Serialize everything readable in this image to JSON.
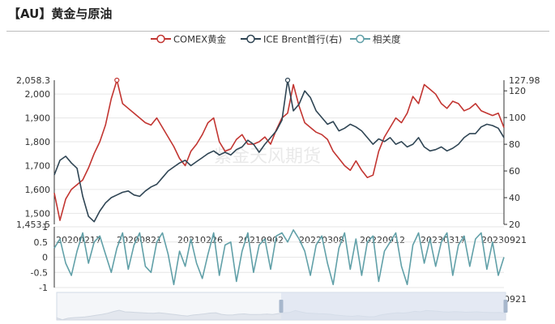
{
  "page": {
    "title": "【AU】黄金与原油"
  },
  "chart_data": [
    {
      "type": "line",
      "x_ticks": [
        "20200217",
        "20200821",
        "20210226",
        "20210902",
        "20220308",
        "20220912",
        "20230317",
        "20230921"
      ],
      "series": [
        {
          "name": "COMEX黄金",
          "axis": "left",
          "color": "#c23531",
          "values": [
            1585,
            1470,
            1560,
            1600,
            1620,
            1640,
            1690,
            1750,
            1800,
            1870,
            1980,
            2058.3,
            1960,
            1940,
            1920,
            1900,
            1880,
            1870,
            1900,
            1860,
            1820,
            1780,
            1730,
            1700,
            1760,
            1790,
            1830,
            1880,
            1900,
            1800,
            1760,
            1770,
            1810,
            1830,
            1790,
            1790,
            1800,
            1820,
            1790,
            1850,
            1900,
            1920,
            2040,
            1950,
            1880,
            1860,
            1840,
            1830,
            1810,
            1760,
            1730,
            1700,
            1680,
            1720,
            1680,
            1650,
            1660,
            1760,
            1820,
            1860,
            1900,
            1880,
            1920,
            1990,
            1960,
            2040,
            2020,
            2000,
            1960,
            1940,
            1970,
            1960,
            1930,
            1940,
            1960,
            1930,
            1920,
            1910,
            1920,
            1860
          ],
          "label": {
            "text": "2,058.3"
          }
        },
        {
          "name": "ICE Brent首行(右)",
          "axis": "right",
          "color": "#2f4554",
          "values": [
            57,
            68,
            71,
            66,
            62,
            41,
            26,
            22,
            30,
            36,
            40,
            42,
            44,
            45,
            42,
            41,
            45,
            48,
            50,
            55,
            60,
            63,
            66,
            68,
            64,
            67,
            70,
            73,
            75,
            72,
            74,
            72,
            76,
            78,
            83,
            80,
            74,
            80,
            85,
            90,
            98,
            127.98,
            105,
            110,
            120,
            115,
            105,
            100,
            95,
            97,
            90,
            92,
            95,
            93,
            90,
            85,
            80,
            84,
            82,
            85,
            80,
            82,
            78,
            80,
            85,
            78,
            75,
            76,
            78,
            75,
            77,
            80,
            85,
            88,
            88,
            93,
            95,
            94,
            92,
            85
          ],
          "label": {
            "text": "127.98"
          }
        }
      ],
      "ylim_left": [
        1453.5,
        2058.3
      ],
      "ylim_right": [
        20,
        127.98
      ],
      "y_left_ticks": [
        1500,
        1600,
        1700,
        1800,
        1900,
        2000
      ],
      "y_left_tick_labels": [
        "1,500",
        "1,600",
        "1,700",
        "1,800",
        "1,900",
        "2,000"
      ],
      "y_left_min_label": "1,453.5",
      "y_left_max_label": "2,058.3",
      "y_right_ticks": [
        20,
        40,
        60,
        80,
        100,
        120
      ],
      "y_right_max_label": "127.98"
    },
    {
      "type": "line",
      "x_ticks": [
        "20200217",
        "20200821",
        "20210226",
        "20210902",
        "20220308",
        "20220912",
        "20230317",
        "20230921"
      ],
      "series": [
        {
          "name": "相关度",
          "color": "#61a0a8",
          "values": [
            0.3,
            0.6,
            -0.2,
            -0.6,
            0.2,
            0.8,
            -0.2,
            0.5,
            0.7,
            0.1,
            -0.5,
            0.3,
            0.8,
            -0.4,
            0.4,
            0.8,
            -0.3,
            -0.5,
            0.5,
            0.8,
            0.1,
            -0.9,
            0.2,
            -0.3,
            0.6,
            -0.2,
            -0.7,
            0.1,
            0.8,
            -0.6,
            0.4,
            0.5,
            -0.8,
            0.2,
            0.8,
            -0.5,
            0.4,
            0.6,
            -0.4,
            0.7,
            0.8,
            0.5,
            0.9,
            0.6,
            0.2,
            -0.6,
            0.4,
            0.7,
            -0.2,
            -0.9,
            0.3,
            0.8,
            -0.4,
            0.6,
            -0.6,
            0.5,
            0.7,
            -0.8,
            0.2,
            0.5,
            0.8,
            -0.3,
            -0.9,
            0.4,
            0.8,
            -0.2,
            0.6,
            -0.3,
            0.5,
            0.8,
            -0.6,
            0.4,
            0.7,
            -0.3,
            0.6,
            0.8,
            -0.4,
            0.5,
            -0.6,
            0.0
          ]
        }
      ],
      "ylim": [
        -1,
        1
      ],
      "y_ticks": [
        1,
        0.5,
        0,
        -0.5,
        -1
      ],
      "y_tick_labels": [
        "1",
        "0.5",
        "0",
        "-0.5",
        "-1"
      ]
    }
  ],
  "zoom_slider": {
    "start_fraction": 0.5,
    "end_fraction": 1.0
  },
  "colors": {
    "handle": "#a7b7cc",
    "slider_fill": "#d8e1ee",
    "grid": "#e6e6e6"
  },
  "watermark": "紫金天风期货"
}
